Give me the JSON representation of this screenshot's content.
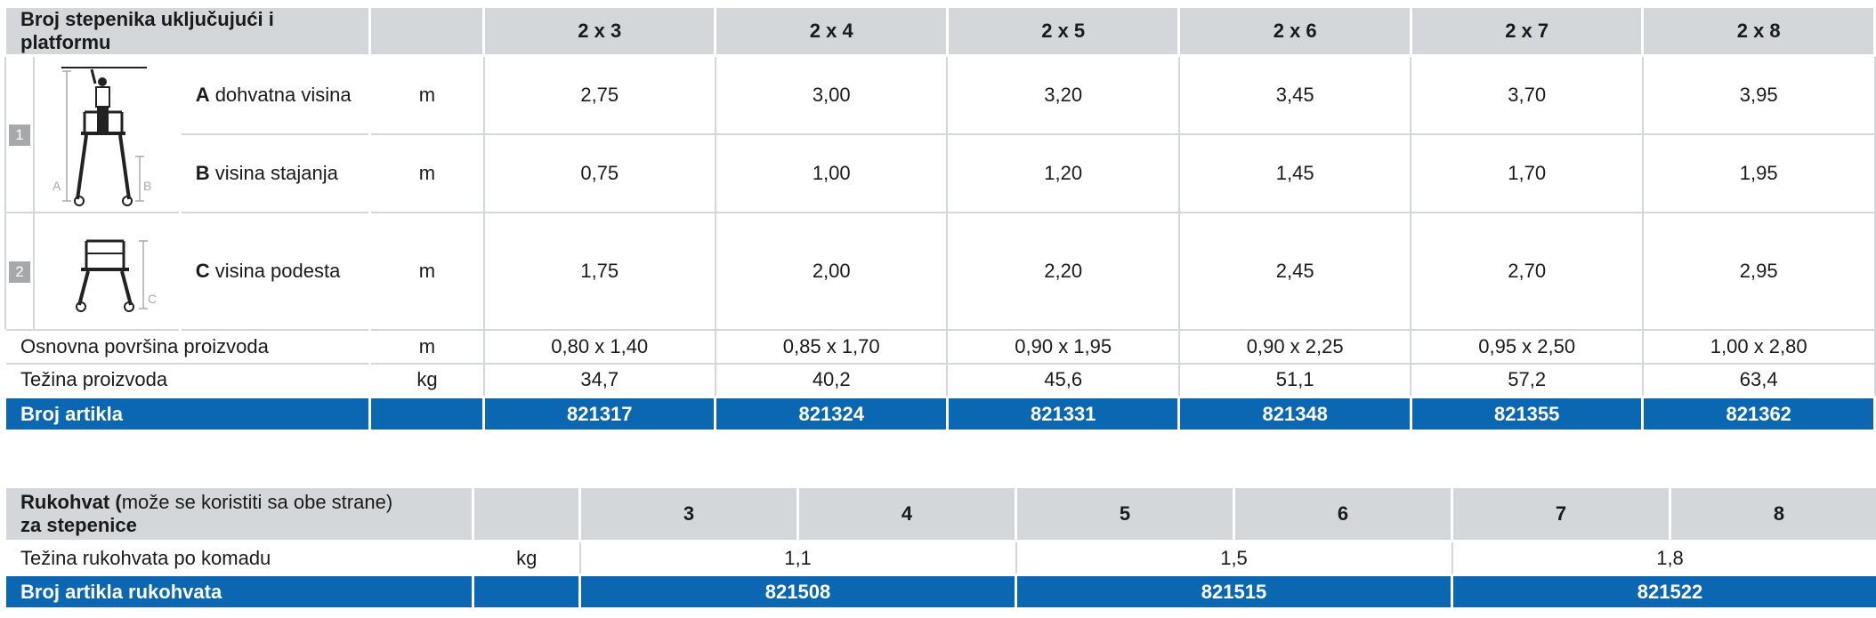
{
  "table1": {
    "header_label": "Broj stepenika uključujući i platformu",
    "columns": [
      "2 x 3",
      "2 x 4",
      "2 x 5",
      "2 x 6",
      "2 x 7",
      "2 x 8"
    ],
    "group1_badge": "1",
    "group2_badge": "2",
    "diagram_letters": {
      "a": "A",
      "b": "B",
      "c": "C"
    },
    "rows": {
      "a": {
        "letter": "A",
        "label": " dohvatna visina",
        "unit": "m",
        "values": [
          "2,75",
          "3,00",
          "3,20",
          "3,45",
          "3,70",
          "3,95"
        ]
      },
      "b": {
        "letter": "B",
        "label": " visina stajanja",
        "unit": "m",
        "values": [
          "0,75",
          "1,00",
          "1,20",
          "1,45",
          "1,70",
          "1,95"
        ]
      },
      "c": {
        "letter": "C",
        "label": " visina podesta",
        "unit": "m",
        "values": [
          "1,75",
          "2,00",
          "2,20",
          "2,45",
          "2,70",
          "2,95"
        ]
      },
      "area": {
        "label": "Osnovna površina proizvoda",
        "unit": "m",
        "values": [
          "0,80 x 1,40",
          "0,85 x 1,70",
          "0,90 x 1,95",
          "0,90 x 2,25",
          "0,95 x 2,50",
          "1,00 x 2,80"
        ]
      },
      "weight": {
        "label": "Težina proizvoda",
        "unit": "kg",
        "values": [
          "34,7",
          "40,2",
          "45,6",
          "51,1",
          "57,2",
          "63,4"
        ]
      },
      "article": {
        "label": "Broj artikla",
        "values": [
          "821317",
          "821324",
          "821331",
          "821348",
          "821355",
          "821362"
        ]
      }
    }
  },
  "table2": {
    "header_bold": "Rukohvat (",
    "header_normal": "može se koristiti sa obe strane)",
    "header_line2": "za stepenice",
    "columns": [
      "3",
      "4",
      "5",
      "6",
      "7",
      "8"
    ],
    "weight": {
      "label": "Težina rukohvata po komadu",
      "unit": "kg",
      "values": [
        "1,1",
        "1,5",
        "1,8"
      ]
    },
    "article": {
      "label": "Broj artikla rukohvata",
      "values": [
        "821508",
        "821515",
        "821522"
      ]
    }
  },
  "colors": {
    "header_gray": "#d4d7da",
    "brand_blue": "#0b67b1",
    "badge_gray": "#a6a8aa"
  }
}
